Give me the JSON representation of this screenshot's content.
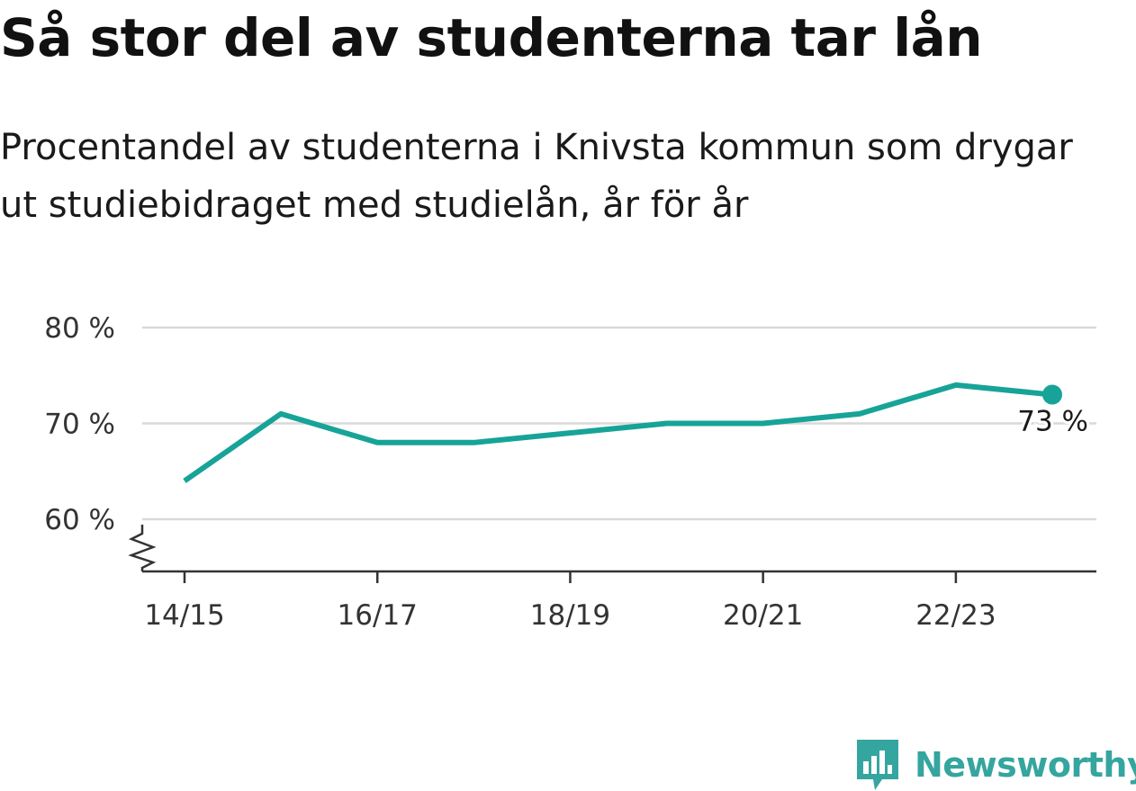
{
  "title": "Så stor del av studenterna tar lån",
  "subtitle": "Procentandel av studenterna i Knivsta kommun som drygar ut studiebidraget med studielån, år för år",
  "brand": {
    "name": "Newsworthy",
    "icon": "newsworthy-logo-icon",
    "color": "#35a59f"
  },
  "chart_data": {
    "type": "line",
    "title": "Så stor del av studenterna tar lån",
    "subtitle": "Procentandel av studenterna i Knivsta kommun som drygar ut studiebidraget med studielån, år för år",
    "x": [
      "14/15",
      "15/16",
      "16/17",
      "17/18",
      "18/19",
      "19/20",
      "20/21",
      "21/22",
      "22/23",
      "23/24"
    ],
    "x_tick_labels": [
      "14/15",
      "16/17",
      "18/19",
      "20/21",
      "22/23"
    ],
    "series": [
      {
        "values": [
          64,
          71,
          68,
          68,
          69,
          70,
          70,
          71,
          74,
          73
        ],
        "color": "#17a398"
      }
    ],
    "y_ticks": [
      60,
      70,
      80
    ],
    "y_tick_labels": [
      "60 %",
      "70 %",
      "80 %"
    ],
    "ylim": [
      55,
      80
    ],
    "y_axis_broken": true,
    "grid": true,
    "end_label": "73 %",
    "colors": {
      "line": "#17a398",
      "grid": "#d9d9d9",
      "axis": "#333333"
    }
  }
}
